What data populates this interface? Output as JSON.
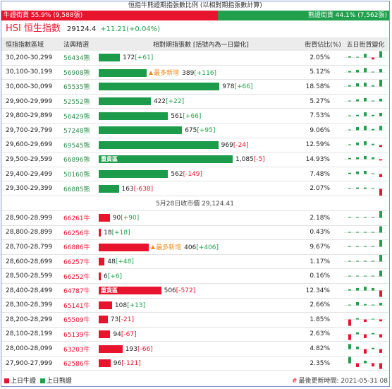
{
  "title": "恒指牛熊證期指張數比例 (以相對期指張數計算)",
  "ratio": {
    "bull_label": "牛證街貨 55.9% (9,588張)",
    "bear_label": "熊證街貨 44.1% (7,562張)",
    "bull_fraction": 0.559,
    "colors": {
      "bull": "#e8142d",
      "bear": "#20a04d"
    }
  },
  "index": {
    "name": "HSI 恒生指數",
    "value": "29124.4",
    "change": "+11.21(+0.04%)"
  },
  "headers": {
    "range": "恒指指數區域",
    "code": "法興精選",
    "bar": "相對期指張數 [括號內為一日變化]",
    "pct": "街貨佔比(%)",
    "spark": "五日街貨變化"
  },
  "separator": "5月28日收市價 29,124.41",
  "bar_max": 1085,
  "bear_rows": [
    {
      "range": "30,200-30,299",
      "code": "56434熊",
      "qty": "172",
      "chg": "[+61]",
      "chg_sign": "pos",
      "qty_num": 172,
      "tag": "",
      "hot": "",
      "pct": "2.05%",
      "spark": [
        0.1,
        0,
        0.3,
        -0.15,
        0.5
      ]
    },
    {
      "range": "30,100-30,199",
      "code": "56908熊",
      "qty": "389",
      "chg": "[+116]",
      "chg_sign": "pos",
      "qty_num": 389,
      "tag": "",
      "hot": "最多新增",
      "pct": "5.12%",
      "spark": [
        0.1,
        0.2,
        0.35,
        0.05,
        0.25
      ]
    },
    {
      "range": "30,000-30,099",
      "code": "65535熊",
      "qty": "978",
      "chg": "[+66]",
      "chg_sign": "pos",
      "qty_num": 978,
      "tag": "",
      "hot": "",
      "pct": "18.58%",
      "spark": [
        0.1,
        0.25,
        0.3,
        0.1,
        0.6
      ]
    },
    {
      "range": "29,900-29,999",
      "code": "52552熊",
      "qty": "422",
      "chg": "[+22]",
      "chg_sign": "pos",
      "qty_num": 422,
      "tag": "",
      "hot": "",
      "pct": "5.27%",
      "spark": [
        0.05,
        0.15,
        0.25,
        0.05,
        0.2
      ]
    },
    {
      "range": "29,800-29,899",
      "code": "56429熊",
      "qty": "561",
      "chg": "[+66]",
      "chg_sign": "pos",
      "qty_num": 561,
      "tag": "",
      "hot": "",
      "pct": "7.53%",
      "spark": [
        0.05,
        0.1,
        0.3,
        0.1,
        0.25
      ]
    },
    {
      "range": "29,700-29,799",
      "code": "57248熊",
      "qty": "675",
      "chg": "[+95]",
      "chg_sign": "pos",
      "qty_num": 675,
      "tag": "",
      "hot": "",
      "pct": "9.06%",
      "spark": [
        0.05,
        0.25,
        0.35,
        0.1,
        0.35
      ]
    },
    {
      "range": "29,600-29,699",
      "code": "69545熊",
      "qty": "969",
      "chg": "[-24]",
      "chg_sign": "neg",
      "qty_num": 969,
      "tag": "",
      "hot": "",
      "pct": "12.59%",
      "spark": [
        0.05,
        0.2,
        0.3,
        0.1,
        -0.15
      ]
    },
    {
      "range": "29,500-29,599",
      "code": "66896熊",
      "qty": "1,085",
      "chg": "[-5]",
      "chg_sign": "neg",
      "qty_num": 1085,
      "tag": "重貨區",
      "hot": "",
      "pct": "14.93%",
      "spark": [
        0.1,
        0.15,
        0.25,
        0.15,
        -0.1
      ]
    },
    {
      "range": "29,400-29,499",
      "code": "50160熊",
      "qty": "562",
      "chg": "[-149]",
      "chg_sign": "neg",
      "qty_num": 562,
      "tag": "",
      "hot": "",
      "pct": "7.48%",
      "spark": [
        0.1,
        0.2,
        0.25,
        0.05,
        -0.25
      ]
    },
    {
      "range": "29,300-29,399",
      "code": "66885熊",
      "qty": "163",
      "chg": "[-638]",
      "chg_sign": "neg",
      "qty_num": 163,
      "tag": "",
      "hot": "",
      "pct": "2.07%",
      "spark": [
        0.05,
        0.1,
        0.1,
        0.05,
        -0.6
      ]
    }
  ],
  "bull_rows": [
    {
      "range": "28,900-28,999",
      "code": "66261牛",
      "qty": "90",
      "chg": "[+90]",
      "chg_sign": "pos",
      "qty_num": 90,
      "tag": "",
      "hot": "",
      "pct": "2.18%",
      "spark": [
        0,
        0,
        0,
        0,
        0.6
      ]
    },
    {
      "range": "28,800-28,899",
      "code": "66256牛",
      "qty": "18",
      "chg": "[+18]",
      "chg_sign": "pos",
      "qty_num": 18,
      "tag": "",
      "hot": "",
      "pct": "0.43%",
      "spark": [
        0,
        0,
        0,
        0,
        0.5
      ]
    },
    {
      "range": "28,700-28,799",
      "code": "66886牛",
      "qty": "406",
      "chg": "[+406]",
      "chg_sign": "pos",
      "qty_num": 406,
      "tag": "",
      "hot": "最多新增",
      "pct": "9.67%",
      "spark": [
        0,
        0,
        0,
        0,
        0.8
      ]
    },
    {
      "range": "28,600-28,699",
      "code": "66257牛",
      "qty": "48",
      "chg": "[+48]",
      "chg_sign": "pos",
      "qty_num": 48,
      "tag": "",
      "hot": "",
      "pct": "1.17%",
      "spark": [
        0,
        0,
        0,
        0,
        0.55
      ]
    },
    {
      "range": "28,500-28,599",
      "code": "66252牛",
      "qty": "6",
      "chg": "[+6]",
      "chg_sign": "pos",
      "qty_num": 6,
      "tag": "",
      "hot": "",
      "pct": "0.16%",
      "spark": [
        0,
        0,
        0,
        0,
        0.45
      ]
    },
    {
      "range": "28,400-28,499",
      "code": "64787牛",
      "qty": "506",
      "chg": "[-572]",
      "chg_sign": "neg",
      "qty_num": 506,
      "tag": "重貨區",
      "hot": "",
      "pct": "12.34%",
      "spark": [
        0.1,
        0.2,
        0.3,
        0.2,
        -0.5
      ]
    },
    {
      "range": "28,300-28,399",
      "code": "65141牛",
      "qty": "108",
      "chg": "[+13]",
      "chg_sign": "pos",
      "qty_num": 108,
      "tag": "",
      "hot": "",
      "pct": "2.66%",
      "spark": [
        0.05,
        0.25,
        0.1,
        0.05,
        0.2
      ]
    },
    {
      "range": "28,200-28,299",
      "code": "65509牛",
      "qty": "73",
      "chg": "[-21]",
      "chg_sign": "neg",
      "qty_num": 73,
      "tag": "",
      "hot": "",
      "pct": "1.85%",
      "spark": [
        -0.5,
        0.1,
        -0.2,
        0.05,
        -0.15
      ]
    },
    {
      "range": "28,100-28,199",
      "code": "65139牛",
      "qty": "94",
      "chg": "[-67]",
      "chg_sign": "neg",
      "qty_num": 94,
      "tag": "",
      "hot": "",
      "pct": "2.63%",
      "spark": [
        -0.45,
        0.15,
        -0.3,
        0.1,
        -0.25
      ]
    },
    {
      "range": "28,000-28,099",
      "code": "63203牛",
      "qty": "193",
      "chg": "[-66]",
      "chg_sign": "neg",
      "qty_num": 193,
      "tag": "",
      "hot": "",
      "pct": "4.82%",
      "spark": [
        0.4,
        0.2,
        -0.35,
        0.1,
        -0.3
      ]
    },
    {
      "range": "27,900-27,999",
      "code": "62586牛",
      "qty": "96",
      "chg": "[-121]",
      "chg_sign": "neg",
      "qty_num": 96,
      "tag": "",
      "hot": "",
      "pct": "2.35%",
      "spark": [
        0.5,
        -0.3,
        0.2,
        -0.25,
        -0.45
      ]
    }
  ],
  "footer": {
    "bull_legend": "上日牛證",
    "bear_legend": "上日熊證",
    "updated": "最後更新時間: 2021-05-31 08"
  },
  "colors": {
    "bull": "#e8142d",
    "bear": "#20a04d",
    "hot": "#f08a1a"
  }
}
